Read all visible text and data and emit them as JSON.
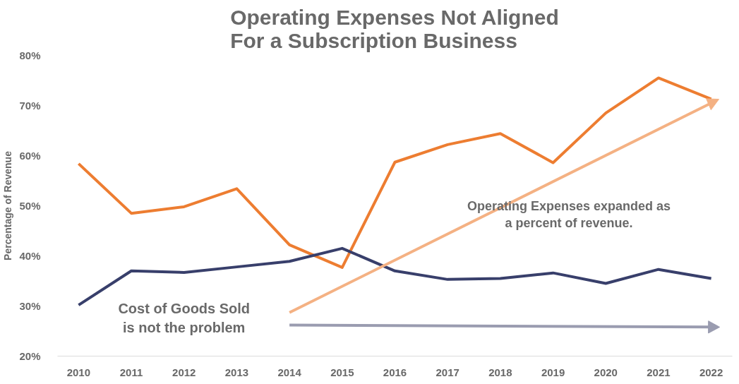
{
  "chart_data": {
    "type": "line",
    "title": "Operating Expenses Not Aligned\nFor a Subscription Business",
    "ylabel": "Percentage of Revenue",
    "x": [
      2010,
      2011,
      2012,
      2013,
      2014,
      2015,
      2016,
      2017,
      2018,
      2019,
      2020,
      2021,
      2022
    ],
    "series": [
      {
        "color": "#ed7d31",
        "values": [
          58.4,
          48.5,
          49.8,
          53.4,
          42.2,
          37.7,
          58.7,
          62.2,
          64.4,
          58.6,
          68.5,
          75.5,
          71.3
        ]
      },
      {
        "color": "#383f6b",
        "values": [
          30.2,
          37.0,
          36.7,
          37.8,
          38.9,
          41.5,
          37.0,
          35.3,
          35.5,
          36.6,
          34.5,
          37.3,
          35.5
        ]
      },
      {
        "type": "line",
        "color": "#f4b183",
        "values": [
          null,
          null,
          null,
          null,
          28.7,
          null,
          null,
          null,
          null,
          null,
          null,
          null,
          70.5
        ]
      },
      {
        "type": "line",
        "color": "#9a9cb0",
        "values": [
          null,
          null,
          null,
          null,
          26.2,
          null,
          null,
          null,
          null,
          null,
          null,
          null,
          25.8
        ]
      }
    ],
    "annotations": [
      "Cost of Goods Sold\nis not the problem",
      "Operating Expenses expanded as\na percent of revenue."
    ],
    "xlim": [
      2009.6,
      2022.4
    ],
    "xticks": [
      2010,
      2011,
      2012,
      2013,
      2014,
      2015,
      2016,
      2017,
      2018,
      2019,
      2020,
      2021,
      2022
    ],
    "ylim": [
      20,
      80
    ],
    "yticks": [
      {
        "value": 20,
        "label": "20%"
      },
      {
        "value": 30,
        "label": "30%"
      },
      {
        "value": 40,
        "label": "40%"
      },
      {
        "value": 50,
        "label": "50%"
      },
      {
        "value": 60,
        "label": "60%"
      },
      {
        "value": 70,
        "label": "70%"
      },
      {
        "value": 80,
        "label": "80%"
      }
    ],
    "grid": false,
    "line_style": "solid"
  }
}
